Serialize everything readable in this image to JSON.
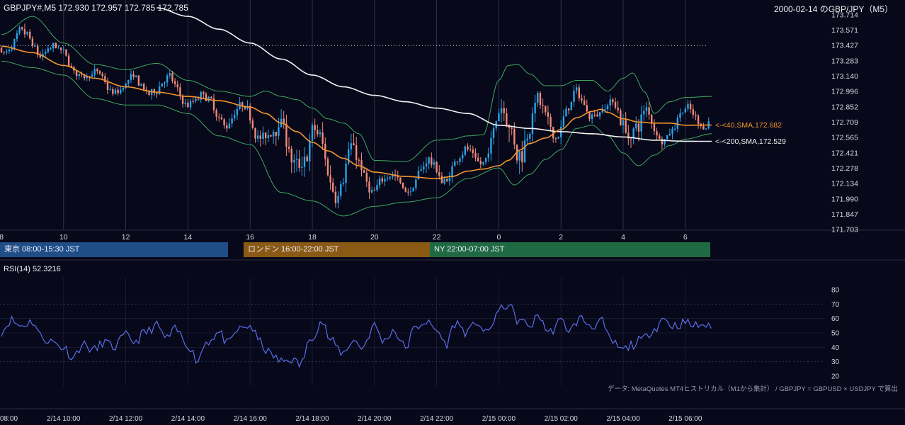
{
  "header": {
    "symbol_ohlc": "GBPJPY#,M5 172.930 172.957 172.785 172.785",
    "date_title": "2000-02-14 のGBP/JPY（M5）"
  },
  "sessions": [
    {
      "label": "東京 08:00-15:30 JST",
      "color": "#1f4e86"
    },
    {
      "label": "ロンドン 16:00-22:00 JST",
      "color": "#8a5a14"
    },
    {
      "label": "NY 22:00-07:00 JST",
      "color": "#1f6a42"
    }
  ],
  "annotations": {
    "sma40_label": "<-<40,SMA,172.682",
    "sma200_label": "<-<200,SMA,172.529"
  },
  "rsi_label": "RSI(14) 52.3216",
  "data_note": "データ: MetaQuotes MT4ヒストリカル（M1から集計） / GBPJPY = GBPUSD × USDJPY で算出",
  "colors": {
    "bull": "#29a3e6",
    "bear": "#f08a78",
    "sma40": "#f2952f",
    "sma200": "#f2f2f2",
    "bollinger": "#3fa860",
    "rsi": "#5a6ee8",
    "grid": "#3a3d52"
  },
  "chart_data": [
    {
      "type": "candlestick",
      "title": "GBPJPY#,M5 172.930 172.957 172.785 172.785",
      "x_tick_labels": [
        "8",
        "10",
        "12",
        "14",
        "16",
        "18",
        "20",
        "22",
        "0",
        "2",
        "4",
        "6"
      ],
      "y_tick_labels": [
        "173.714",
        "173.571",
        "173.427",
        "173.283",
        "173.140",
        "172.996",
        "172.852",
        "172.709",
        "172.565",
        "172.421",
        "172.278",
        "172.134",
        "171.990",
        "171.847",
        "171.703"
      ],
      "ylim": [
        171.703,
        173.714
      ],
      "dotted_level": 173.427,
      "series": [
        {
          "name": "SMA 40",
          "last_value": 172.682,
          "points": [
            [
              8.0,
              173.42
            ],
            [
              9.0,
              173.36
            ],
            [
              10.0,
              173.24
            ],
            [
              11.0,
              173.12
            ],
            [
              12.0,
              173.04
            ],
            [
              13.0,
              172.99
            ],
            [
              14.0,
              172.95
            ],
            [
              15.0,
              172.91
            ],
            [
              16.0,
              172.85
            ],
            [
              16.5,
              172.79
            ],
            [
              17.0,
              172.7
            ],
            [
              17.5,
              172.62
            ],
            [
              18.0,
              172.52
            ],
            [
              18.5,
              172.44
            ],
            [
              19.0,
              172.37
            ],
            [
              19.5,
              172.3
            ],
            [
              20.0,
              172.24
            ],
            [
              21.0,
              172.2
            ],
            [
              22.0,
              172.18
            ],
            [
              22.5,
              172.2
            ],
            [
              23.0,
              172.25
            ],
            [
              23.5,
              172.27
            ],
            [
              24.0,
              172.3
            ],
            [
              24.3,
              172.35
            ],
            [
              24.7,
              172.45
            ],
            [
              25.0,
              172.51
            ],
            [
              25.5,
              172.56
            ],
            [
              26.0,
              172.64
            ],
            [
              26.5,
              172.75
            ],
            [
              27.0,
              172.81
            ],
            [
              27.3,
              172.83
            ],
            [
              27.5,
              172.8
            ],
            [
              28.0,
              172.74
            ],
            [
              28.5,
              172.71
            ],
            [
              29.0,
              172.7
            ],
            [
              29.5,
              172.7
            ],
            [
              30.0,
              172.68
            ],
            [
              30.85,
              172.682
            ]
          ]
        },
        {
          "name": "SMA 200",
          "last_value": 172.529,
          "points": [
            [
              13.0,
              173.78
            ],
            [
              14.0,
              173.7
            ],
            [
              15.0,
              173.58
            ],
            [
              16.0,
              173.45
            ],
            [
              17.0,
              173.3
            ],
            [
              18.0,
              173.15
            ],
            [
              19.0,
              173.04
            ],
            [
              20.0,
              172.96
            ],
            [
              21.0,
              172.9
            ],
            [
              22.0,
              172.84
            ],
            [
              23.0,
              172.79
            ],
            [
              24.0,
              172.68
            ],
            [
              25.0,
              172.65
            ],
            [
              26.0,
              172.62
            ],
            [
              27.0,
              172.6
            ],
            [
              28.0,
              172.57
            ],
            [
              29.0,
              172.54
            ],
            [
              30.0,
              172.53
            ],
            [
              30.85,
              172.529
            ]
          ]
        }
      ],
      "bollinger_upper": [
        [
          8.0,
          173.53
        ],
        [
          9.0,
          173.7
        ],
        [
          10.0,
          173.45
        ],
        [
          11.0,
          173.25
        ],
        [
          12.0,
          173.2
        ],
        [
          13.0,
          173.26
        ],
        [
          14.0,
          173.1
        ],
        [
          15.0,
          173.0
        ],
        [
          16.0,
          172.95
        ],
        [
          16.5,
          173.0
        ],
        [
          17.0,
          172.95
        ],
        [
          17.5,
          172.92
        ],
        [
          18.0,
          172.84
        ],
        [
          18.5,
          172.74
        ],
        [
          19.0,
          172.7
        ],
        [
          19.5,
          172.6
        ],
        [
          20.0,
          172.35
        ],
        [
          21.0,
          172.34
        ],
        [
          22.0,
          172.54
        ],
        [
          22.5,
          172.55
        ],
        [
          23.0,
          172.58
        ],
        [
          23.5,
          172.59
        ],
        [
          24.0,
          173.1
        ],
        [
          24.3,
          173.24
        ],
        [
          24.6,
          173.25
        ],
        [
          25.0,
          173.16
        ],
        [
          25.5,
          173.05
        ],
        [
          26.0,
          173.05
        ],
        [
          26.5,
          173.1
        ],
        [
          27.0,
          173.1
        ],
        [
          27.5,
          173.0
        ],
        [
          28.0,
          173.12
        ],
        [
          28.3,
          173.17
        ],
        [
          28.7,
          172.99
        ],
        [
          29.0,
          172.79
        ],
        [
          29.5,
          172.9
        ],
        [
          30.0,
          172.94
        ],
        [
          30.85,
          172.95
        ]
      ],
      "bollinger_lower": [
        [
          8.0,
          173.28
        ],
        [
          9.0,
          173.22
        ],
        [
          10.0,
          173.15
        ],
        [
          11.0,
          172.93
        ],
        [
          12.0,
          172.87
        ],
        [
          13.0,
          172.87
        ],
        [
          14.0,
          172.79
        ],
        [
          15.0,
          172.58
        ],
        [
          16.0,
          172.5
        ],
        [
          17.0,
          172.05
        ],
        [
          18.0,
          171.97
        ],
        [
          19.0,
          171.83
        ],
        [
          20.0,
          171.92
        ],
        [
          21.0,
          171.96
        ],
        [
          22.0,
          172.0
        ],
        [
          23.0,
          172.18
        ],
        [
          24.0,
          172.28
        ],
        [
          24.5,
          172.12
        ],
        [
          25.0,
          172.22
        ],
        [
          25.5,
          172.36
        ],
        [
          26.0,
          172.45
        ],
        [
          26.5,
          172.65
        ],
        [
          27.0,
          172.68
        ],
        [
          27.5,
          172.58
        ],
        [
          28.0,
          172.42
        ],
        [
          28.5,
          172.3
        ],
        [
          29.0,
          172.4
        ],
        [
          29.5,
          172.49
        ],
        [
          30.0,
          172.55
        ],
        [
          30.85,
          172.6
        ]
      ],
      "candles_summary": "M5 candlesticks from 8:00 to about 6:50 JST on 2/15; highs near 173.64 around 8:55, lows near 171.85 around 19:30"
    },
    {
      "type": "line",
      "title": "RSI(14) 52.3216",
      "y_tick_labels": [
        "80",
        "70",
        "60",
        "50",
        "40",
        "30",
        "20"
      ],
      "ylim": [
        20,
        80
      ],
      "dashed_levels": [
        30,
        70
      ],
      "x_tick_labels": [
        "08:00",
        "2/14 10:00",
        "2/14 12:00",
        "2/14 14:00",
        "2/14 16:00",
        "2/14 18:00",
        "2/14 20:00",
        "2/14 22:00",
        "2/15 00:00",
        "2/15 02:00",
        "2/15 04:00",
        "2/15 06:00"
      ],
      "last_value": 52.3216,
      "points": [
        [
          8.0,
          51
        ],
        [
          8.3,
          59
        ],
        [
          8.6,
          55
        ],
        [
          9.0,
          58
        ],
        [
          9.3,
          47
        ],
        [
          9.6,
          44
        ],
        [
          10.0,
          40
        ],
        [
          10.3,
          33
        ],
        [
          10.6,
          42
        ],
        [
          11.0,
          38
        ],
        [
          11.3,
          44
        ],
        [
          11.6,
          40
        ],
        [
          12.0,
          48
        ],
        [
          12.3,
          44
        ],
        [
          12.6,
          50
        ],
        [
          13.0,
          55
        ],
        [
          13.3,
          46
        ],
        [
          13.6,
          52
        ],
        [
          14.0,
          42
        ],
        [
          14.3,
          31
        ],
        [
          14.6,
          44
        ],
        [
          15.0,
          50
        ],
        [
          15.3,
          42
        ],
        [
          15.6,
          52
        ],
        [
          16.0,
          55
        ],
        [
          16.3,
          44
        ],
        [
          16.6,
          36
        ],
        [
          17.0,
          30
        ],
        [
          17.3,
          32
        ],
        [
          17.6,
          28
        ],
        [
          18.0,
          48
        ],
        [
          18.3,
          58
        ],
        [
          18.6,
          44
        ],
        [
          19.0,
          36
        ],
        [
          19.3,
          45
        ],
        [
          19.6,
          40
        ],
        [
          20.0,
          55
        ],
        [
          20.3,
          44
        ],
        [
          20.6,
          52
        ],
        [
          21.0,
          40
        ],
        [
          21.3,
          53
        ],
        [
          21.6,
          58
        ],
        [
          22.0,
          52
        ],
        [
          22.3,
          42
        ],
        [
          22.6,
          57
        ],
        [
          23.0,
          50
        ],
        [
          23.3,
          58
        ],
        [
          23.6,
          49
        ],
        [
          24.0,
          65
        ],
        [
          24.3,
          70
        ],
        [
          24.6,
          59
        ],
        [
          25.0,
          55
        ],
        [
          25.3,
          62
        ],
        [
          25.6,
          50
        ],
        [
          26.0,
          58
        ],
        [
          26.3,
          52
        ],
        [
          26.6,
          60
        ],
        [
          27.0,
          55
        ],
        [
          27.3,
          58
        ],
        [
          27.6,
          44
        ],
        [
          28.0,
          38
        ],
        [
          28.3,
          42
        ],
        [
          28.6,
          45
        ],
        [
          29.0,
          53
        ],
        [
          29.3,
          60
        ],
        [
          29.6,
          55
        ],
        [
          30.0,
          57
        ],
        [
          30.3,
          55
        ],
        [
          30.6,
          56
        ],
        [
          30.85,
          52.3
        ]
      ]
    }
  ]
}
